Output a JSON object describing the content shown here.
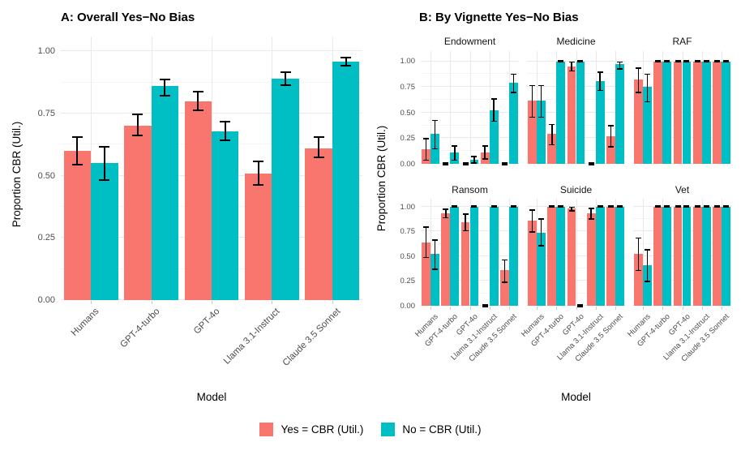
{
  "legend": {
    "items": [
      {
        "label": "Yes = CBR (Util.)",
        "color": "#F8766D"
      },
      {
        "label": "No = CBR (Util.)",
        "color": "#00BFC4"
      }
    ]
  },
  "colors": {
    "yes": "#F8766D",
    "no": "#00BFC4",
    "error_bar": "#000000",
    "grid_major": "#E9E9E9",
    "grid_minor": "#F4F4F4",
    "tick_text": "#4D4D4D"
  },
  "chart_data": [
    {
      "id": "overall",
      "type": "bar",
      "title": "A: Overall Yes−No Bias",
      "xlabel": "Model",
      "ylabel": "Proportion CBR (Util.)",
      "ylim": [
        0,
        1.0
      ],
      "yticks": [
        "0.00",
        "0.25",
        "0.50",
        "0.75",
        "1.00"
      ],
      "grid": true,
      "legend_position": "bottom",
      "error_bars": true,
      "categories": [
        "Humans",
        "GPT-4-turbo",
        "GPT-4o",
        "Llama 3.1-Instruct",
        "Claude 3.5 Sonnet"
      ],
      "series": [
        {
          "name": "Yes = CBR (Util.)",
          "color": "#F8766D",
          "values": [
            0.6,
            0.7,
            0.8,
            0.51,
            0.61
          ],
          "ci_low": [
            0.54,
            0.66,
            0.76,
            0.46,
            0.57
          ],
          "ci_high": [
            0.66,
            0.75,
            0.84,
            0.56,
            0.66
          ]
        },
        {
          "name": "No = CBR (Util.)",
          "color": "#00BFC4",
          "values": [
            0.55,
            0.86,
            0.68,
            0.89,
            0.96
          ],
          "ci_low": [
            0.48,
            0.82,
            0.64,
            0.86,
            0.94
          ],
          "ci_high": [
            0.62,
            0.89,
            0.72,
            0.92,
            0.98
          ]
        }
      ]
    },
    {
      "id": "by_vignette",
      "type": "bar",
      "title": "B: By Vignette Yes−No Bias",
      "xlabel": "Model",
      "ylabel": "Proportion CBR (Util.)",
      "ylim": [
        0,
        1.0
      ],
      "yticks": [
        "0.00",
        "0.25",
        "0.50",
        "0.75",
        "1.00"
      ],
      "grid": true,
      "error_bars": true,
      "facet_layout": {
        "rows": 2,
        "cols": 3
      },
      "categories": [
        "Humans",
        "GPT-4-turbo",
        "GPT-4o",
        "Llama 3.1-Instruct",
        "Claude 3.5 Sonnet"
      ],
      "facets": [
        {
          "name": "Endowment",
          "series": [
            {
              "name": "Yes = CBR (Util.)",
              "color": "#F8766D",
              "values": [
                0.14,
                0.0,
                0.0,
                0.11,
                0.0
              ],
              "ci_low": [
                0.03,
                0.0,
                0.0,
                0.04,
                0.0
              ],
              "ci_high": [
                0.25,
                0.0,
                0.0,
                0.18,
                0.0
              ]
            },
            {
              "name": "No = CBR (Util.)",
              "color": "#00BFC4",
              "values": [
                0.29,
                0.11,
                0.04,
                0.52,
                0.79
              ],
              "ci_low": [
                0.14,
                0.03,
                0.0,
                0.41,
                0.69
              ],
              "ci_high": [
                0.43,
                0.18,
                0.08,
                0.64,
                0.88
              ]
            }
          ]
        },
        {
          "name": "Medicine",
          "series": [
            {
              "name": "Yes = CBR (Util.)",
              "color": "#F8766D",
              "values": [
                0.62,
                0.29,
                0.95,
                0.0,
                0.27
              ],
              "ci_low": [
                0.45,
                0.18,
                0.9,
                0.0,
                0.16
              ],
              "ci_high": [
                0.77,
                0.39,
                1.0,
                0.0,
                0.38
              ]
            },
            {
              "name": "No = CBR (Util.)",
              "color": "#00BFC4",
              "values": [
                0.62,
                1.0,
                1.0,
                0.81,
                0.97
              ],
              "ci_low": [
                0.45,
                1.0,
                1.0,
                0.71,
                0.92
              ],
              "ci_high": [
                0.77,
                1.0,
                1.0,
                0.9,
                1.0
              ]
            }
          ]
        },
        {
          "name": "RAF",
          "series": [
            {
              "name": "Yes = CBR (Util.)",
              "color": "#F8766D",
              "values": [
                0.82,
                1.0,
                1.0,
                1.0,
                1.0
              ],
              "ci_low": [
                0.69,
                1.0,
                1.0,
                1.0,
                1.0
              ],
              "ci_high": [
                0.94,
                1.0,
                1.0,
                1.0,
                1.0
              ]
            },
            {
              "name": "No = CBR (Util.)",
              "color": "#00BFC4",
              "values": [
                0.75,
                1.0,
                1.0,
                1.0,
                1.0
              ],
              "ci_low": [
                0.6,
                1.0,
                1.0,
                1.0,
                1.0
              ],
              "ci_high": [
                0.88,
                1.0,
                1.0,
                1.0,
                1.0
              ]
            }
          ]
        },
        {
          "name": "Ransom",
          "series": [
            {
              "name": "Yes = CBR (Util.)",
              "color": "#F8766D",
              "values": [
                0.64,
                0.93,
                0.84,
                0.0,
                0.36
              ],
              "ci_low": [
                0.48,
                0.88,
                0.75,
                0.0,
                0.23
              ],
              "ci_high": [
                0.8,
                0.98,
                0.93,
                0.0,
                0.47
              ]
            },
            {
              "name": "No = CBR (Util.)",
              "color": "#00BFC4",
              "values": [
                0.52,
                1.0,
                1.0,
                1.0,
                1.0
              ],
              "ci_low": [
                0.36,
                1.0,
                1.0,
                1.0,
                1.0
              ],
              "ci_high": [
                0.67,
                1.0,
                1.0,
                1.0,
                1.0
              ]
            }
          ]
        },
        {
          "name": "Suicide",
          "series": [
            {
              "name": "Yes = CBR (Util.)",
              "color": "#F8766D",
              "values": [
                0.86,
                1.0,
                0.98,
                0.93,
                1.0
              ],
              "ci_low": [
                0.74,
                1.0,
                0.95,
                0.87,
                1.0
              ],
              "ci_high": [
                0.97,
                1.0,
                1.0,
                0.99,
                1.0
              ]
            },
            {
              "name": "No = CBR (Util.)",
              "color": "#00BFC4",
              "values": [
                0.74,
                1.0,
                0.0,
                1.0,
                1.0
              ],
              "ci_low": [
                0.6,
                1.0,
                0.0,
                1.0,
                1.0
              ],
              "ci_high": [
                0.88,
                1.0,
                0.0,
                1.0,
                1.0
              ]
            }
          ]
        },
        {
          "name": "Vet",
          "series": [
            {
              "name": "Yes = CBR (Util.)",
              "color": "#F8766D",
              "values": [
                0.52,
                1.0,
                1.0,
                1.0,
                1.0
              ],
              "ci_low": [
                0.35,
                1.0,
                1.0,
                1.0,
                1.0
              ],
              "ci_high": [
                0.69,
                1.0,
                1.0,
                1.0,
                1.0
              ]
            },
            {
              "name": "No = CBR (Util.)",
              "color": "#00BFC4",
              "values": [
                0.41,
                1.0,
                1.0,
                1.0,
                1.0
              ],
              "ci_low": [
                0.24,
                1.0,
                1.0,
                1.0,
                1.0
              ],
              "ci_high": [
                0.57,
                1.0,
                1.0,
                1.0,
                1.0
              ]
            }
          ]
        }
      ]
    }
  ]
}
